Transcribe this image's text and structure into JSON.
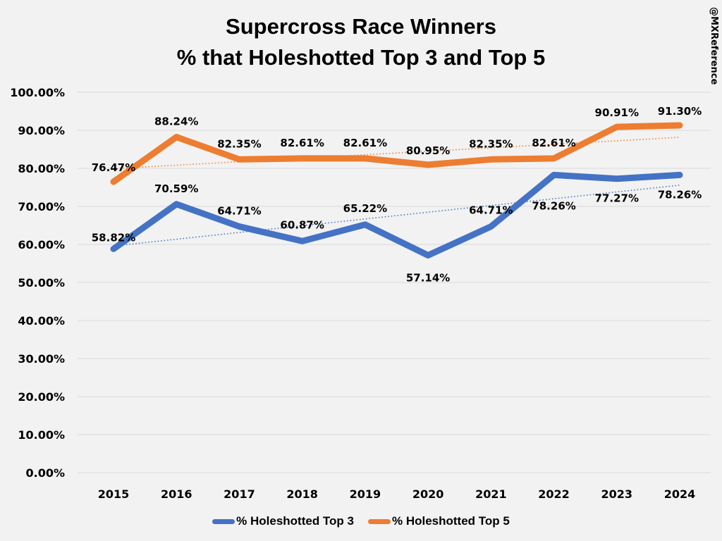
{
  "chart_data": {
    "type": "line",
    "title": [
      "Supercross Race Winners",
      "% that Holeshotted Top 3 and Top 5"
    ],
    "watermark": "@MXReference",
    "xlabel": "",
    "ylabel": "",
    "categories": [
      "2015",
      "2016",
      "2017",
      "2018",
      "2019",
      "2020",
      "2021",
      "2022",
      "2023",
      "2024"
    ],
    "ylim": [
      0,
      100
    ],
    "yticks": [
      "0.00%",
      "10.00%",
      "20.00%",
      "30.00%",
      "40.00%",
      "50.00%",
      "60.00%",
      "70.00%",
      "80.00%",
      "90.00%",
      "100.00%"
    ],
    "grid": true,
    "legend_position": "bottom",
    "series": [
      {
        "name": "% Holeshotted Top 3",
        "color": "#4472c4",
        "values": [
          58.82,
          70.59,
          64.71,
          60.87,
          65.22,
          57.14,
          64.71,
          78.26,
          77.27,
          78.26
        ],
        "labels": [
          "58.82%",
          "70.59%",
          "64.71%",
          "60.87%",
          "65.22%",
          "57.14%",
          "64.71%",
          "78.26%",
          "77.27%",
          "78.26%"
        ],
        "trendline": "linear-dotted"
      },
      {
        "name": "% Holeshotted Top 5",
        "color": "#ed7d31",
        "values": [
          76.47,
          88.24,
          82.35,
          82.61,
          82.61,
          80.95,
          82.35,
          82.61,
          90.91,
          91.3
        ],
        "labels": [
          "76.47%",
          "88.24%",
          "82.35%",
          "82.61%",
          "82.61%",
          "80.95%",
          "82.35%",
          "82.61%",
          "90.91%",
          "91.30%"
        ],
        "trendline": "linear-dotted"
      }
    ]
  }
}
